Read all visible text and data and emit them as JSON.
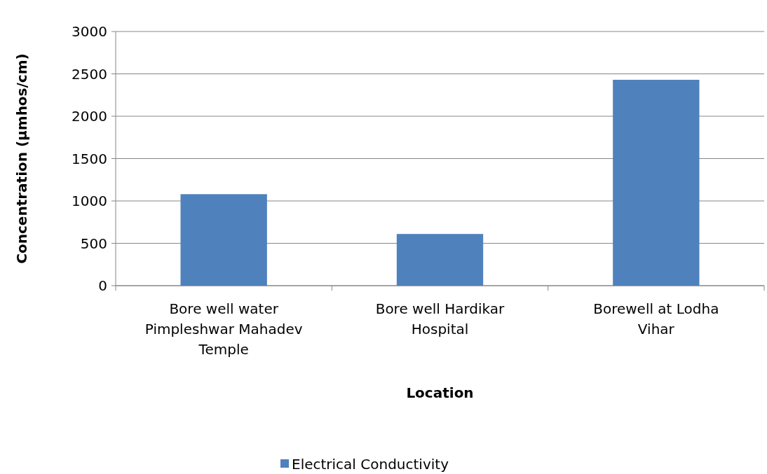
{
  "chart_data": {
    "type": "bar",
    "xlabel": "Location",
    "ylabel": "Concentration (µmhos/cm)",
    "categories": [
      "Bore well water Pimpleshwar Mahadev Temple",
      "Bore well Hardikar Hospital",
      "Borewell at Lodha Vihar"
    ],
    "series": [
      {
        "name": "Electrical Conductivity",
        "color": "#4f81bd",
        "values": [
          1080,
          610,
          2430
        ]
      }
    ],
    "ylim": [
      0,
      3000
    ],
    "yticks": [
      0,
      500,
      1000,
      1500,
      2000,
      2500,
      3000
    ],
    "grid": "y",
    "legend": "bottom"
  }
}
